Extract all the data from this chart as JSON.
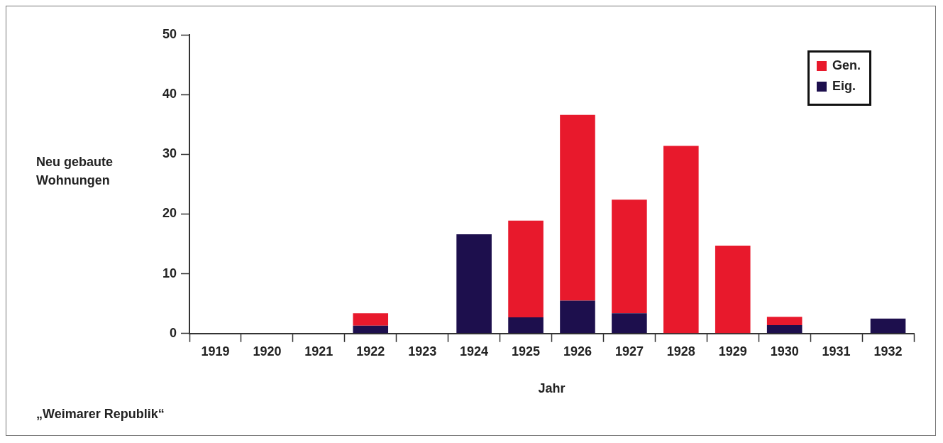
{
  "chart_data": {
    "type": "bar",
    "stacked": true,
    "ylabel": "Neu gebaute\nWohnungen",
    "xlabel": "Jahr",
    "annotations": [
      "„Weimarer Republik“"
    ],
    "categories": [
      "1919",
      "1920",
      "1921",
      "1922",
      "1923",
      "1924",
      "1925",
      "1926",
      "1927",
      "1928",
      "1929",
      "1930",
      "1931",
      "1932"
    ],
    "series": [
      {
        "name": "Eig.",
        "color": "#1d0f4d",
        "values": [
          0,
          0,
          0,
          1.3,
          0,
          16.6,
          2.7,
          5.5,
          3.4,
          0,
          0,
          1.4,
          0,
          2.5
        ]
      },
      {
        "name": "Gen.",
        "color": "#e8192c",
        "values": [
          0,
          0,
          0,
          2.1,
          0,
          0,
          16.2,
          31.1,
          19.0,
          31.4,
          14.7,
          1.4,
          0,
          0
        ]
      }
    ],
    "ylim": [
      0,
      50
    ],
    "yticks": [
      0,
      10,
      20,
      30,
      40,
      50
    ],
    "grid": false,
    "legend": "top right"
  }
}
